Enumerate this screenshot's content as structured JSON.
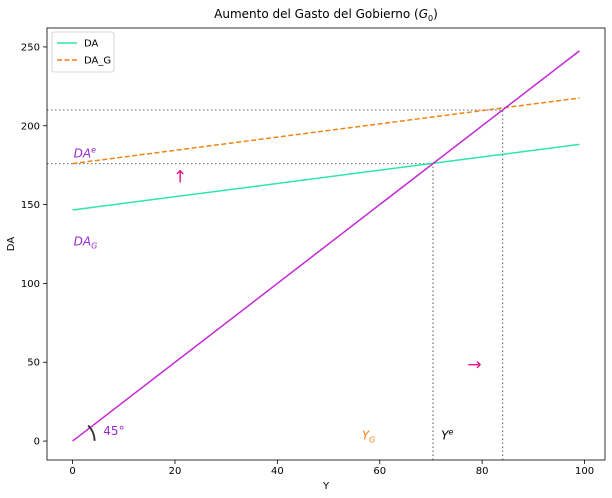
{
  "chart_data": {
    "type": "line",
    "title": "Aumento del Gasto del Gobierno (G0)",
    "title_parts": {
      "main": "Aumento del Gasto del Gobierno (",
      "var": "G",
      "sub": "0",
      "close": ")"
    },
    "xlabel": "Y",
    "ylabel": "DA",
    "xlim": [
      -5,
      104
    ],
    "ylim": [
      -12,
      262
    ],
    "xticks": [
      0,
      20,
      40,
      60,
      80,
      100
    ],
    "yticks": [
      0,
      50,
      100,
      150,
      200,
      250
    ],
    "grid": false,
    "legend_position": "upper-left",
    "series": [
      {
        "name": "DA",
        "color": "#2ee6a6",
        "style": "solid",
        "x": [
          0,
          99
        ],
        "values": [
          146.6,
          188.2
        ]
      },
      {
        "name": "DA_G",
        "color": "#f28314",
        "style": "dashed",
        "x": [
          0,
          99
        ],
        "values": [
          176.0,
          217.6
        ]
      },
      {
        "name": "",
        "color": "#c22ad4",
        "style": "solid",
        "x": [
          0,
          99
        ],
        "values": [
          0,
          247.5
        ]
      }
    ],
    "reference_lines": [
      {
        "kind": "h",
        "y": 210.0,
        "x0": -5,
        "x1": 84.0,
        "color": "#808080"
      },
      {
        "kind": "h",
        "y": 176.0,
        "x0": -5,
        "x1": 70.4,
        "color": "#808080"
      },
      {
        "kind": "v",
        "x": 70.4,
        "y0": -12,
        "y1": 176.0,
        "color": "#808080"
      },
      {
        "kind": "v",
        "x": 84.0,
        "y0": -12,
        "y1": 210.0,
        "color": "#808080"
      }
    ],
    "annotations": [
      {
        "label": "DA",
        "sup": "e",
        "sub": "",
        "x": 0.2,
        "y": 180,
        "color": "#9b2ad0"
      },
      {
        "label": "DA",
        "sup": "",
        "sub": "G",
        "x": 0.2,
        "y": 124,
        "color": "#9b2ad0"
      },
      {
        "label": "Y",
        "sup": "",
        "sub": "G",
        "x": 56.5,
        "y": 1,
        "color": "#f28314"
      },
      {
        "label": "Y",
        "sup": "e",
        "sub": "",
        "x": 72.0,
        "y": 1,
        "color": "#000000"
      },
      {
        "label": "45°",
        "sup": "",
        "sub": "",
        "x": 6.0,
        "y": 4,
        "color": "#9b2ad0",
        "plain": true
      }
    ],
    "arrows": [
      {
        "glyph": "↑",
        "x": 21.0,
        "y": 164,
        "color": "#e8158c"
      },
      {
        "glyph": "→",
        "x": 78.5,
        "y": 45,
        "color": "#e8158c"
      }
    ],
    "angle_arc": {
      "cx": 0,
      "cy": 0,
      "color": "#333333"
    }
  }
}
